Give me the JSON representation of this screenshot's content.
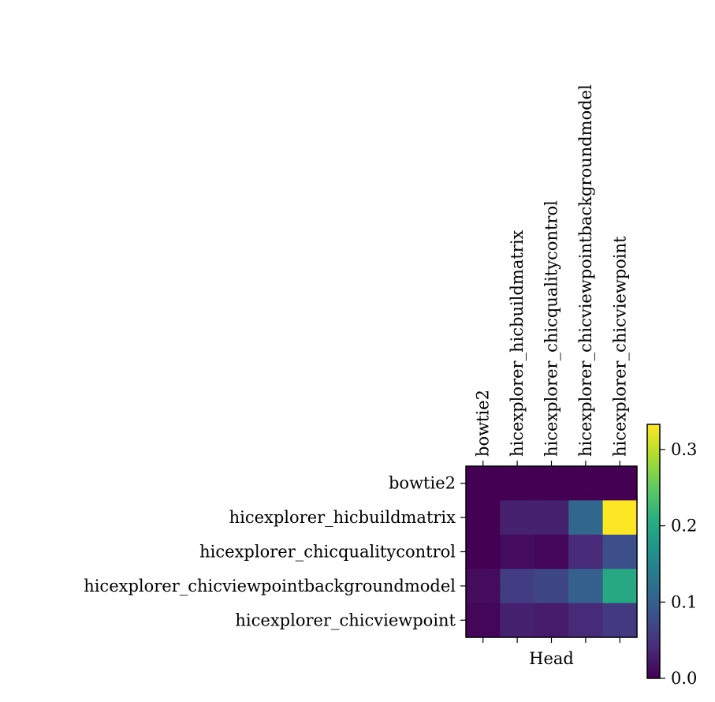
{
  "chart_data": {
    "type": "heatmap",
    "xlabel": "Head",
    "rows": [
      "bowtie2",
      "hicexplorer_hicbuildmatrix",
      "hicexplorer_chicqualitycontrol",
      "hicexplorer_chicviewpointbackgroundmodel",
      "hicexplorer_chicviewpoint"
    ],
    "columns": [
      "bowtie2",
      "hicexplorer_hicbuildmatrix",
      "hicexplorer_chicqualitycontrol",
      "hicexplorer_chicviewpointbackgroundmodel",
      "hicexplorer_chicviewpoint"
    ],
    "values": [
      [
        0.0,
        0.0,
        0.0,
        0.0,
        0.0
      ],
      [
        0.0,
        0.03,
        0.03,
        0.11,
        0.333
      ],
      [
        0.0,
        0.01,
        0.005,
        0.04,
        0.08
      ],
      [
        0.01,
        0.06,
        0.07,
        0.1,
        0.2
      ],
      [
        0.005,
        0.03,
        0.025,
        0.04,
        0.055
      ]
    ],
    "colormap": "viridis",
    "colorbar": {
      "min": 0.0,
      "max": 0.333,
      "ticks": [
        0.0,
        0.1,
        0.2,
        0.3
      ],
      "tick_labels": [
        "0.0",
        "0.1",
        "0.2",
        "0.3"
      ]
    }
  }
}
